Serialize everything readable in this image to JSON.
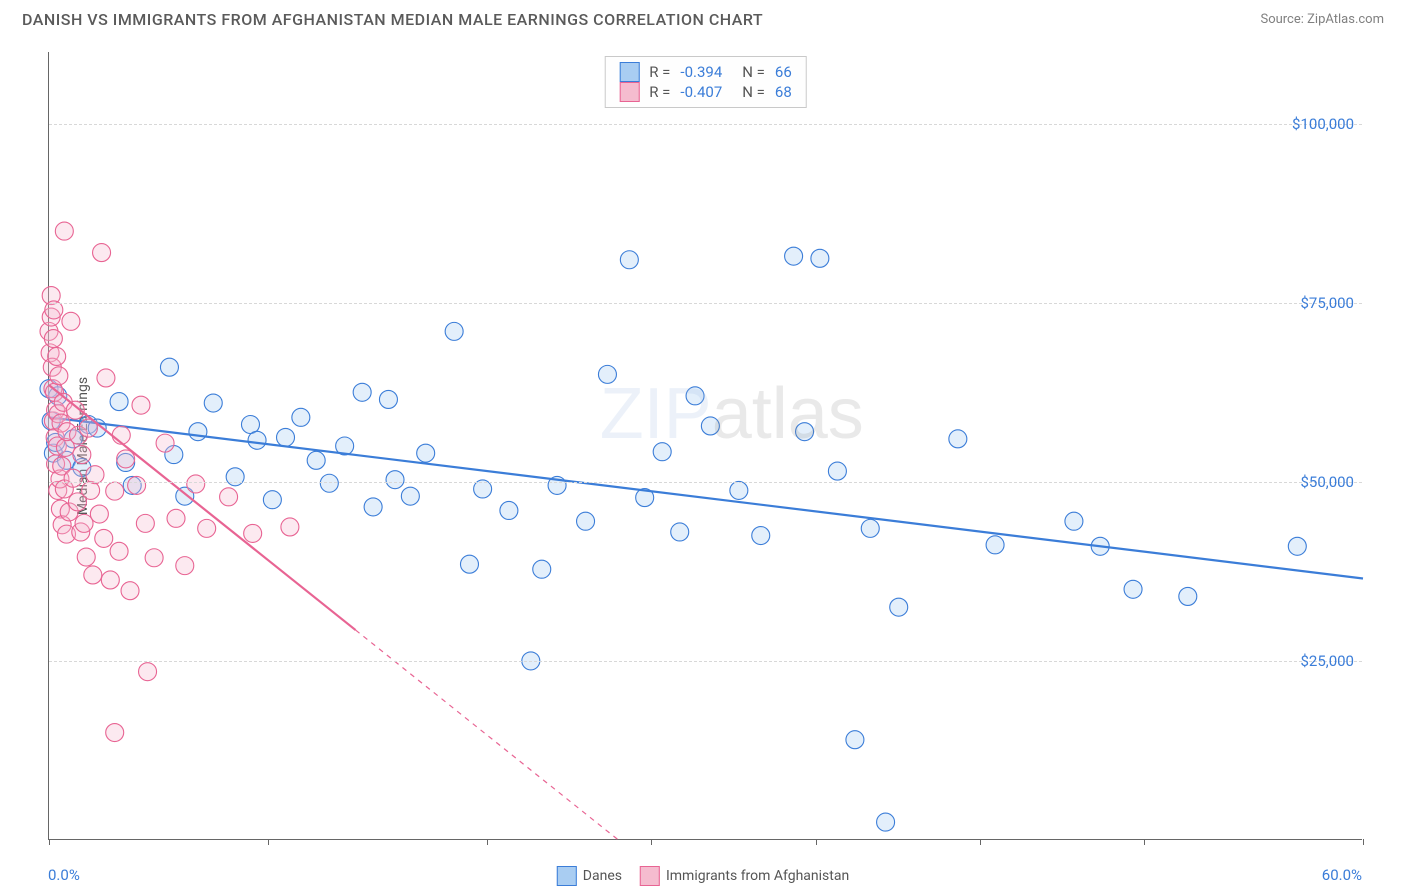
{
  "title": "DANISH VS IMMIGRANTS FROM AFGHANISTAN MEDIAN MALE EARNINGS CORRELATION CHART",
  "source_label": "Source: ZipAtlas.com",
  "y_axis_label": "Median Male Earnings",
  "watermark_a": "ZIP",
  "watermark_b": "atlas",
  "chart": {
    "type": "scatter",
    "xlim": [
      0,
      60
    ],
    "ylim": [
      0,
      110000
    ],
    "x_min_label": "0.0%",
    "x_max_label": "60.0%",
    "x_tick_positions": [
      0,
      10,
      20,
      27.5,
      35,
      42.5,
      50,
      60
    ],
    "y_ticks": [
      {
        "value": 25000,
        "label": "$25,000"
      },
      {
        "value": 50000,
        "label": "$50,000"
      },
      {
        "value": 75000,
        "label": "$75,000"
      },
      {
        "value": 100000,
        "label": "$100,000"
      }
    ],
    "background_color": "#ffffff",
    "grid_color": "#d8d8d8",
    "marker_radius": 9,
    "marker_fill_opacity": 0.32,
    "marker_stroke_width": 1.1,
    "line_width": 2.2,
    "series": [
      {
        "name": "Danes",
        "color_fill": "#a9cdf2",
        "color_stroke": "#3b7dd8",
        "R": "-0.394",
        "N": "66",
        "trend": {
          "x1": 0,
          "y1": 59000,
          "x2": 60,
          "y2": 36500,
          "solid_until_x": 60
        },
        "points": [
          [
            0.0,
            63000
          ],
          [
            0.2,
            54000
          ],
          [
            0.3,
            55500
          ],
          [
            0.4,
            62000
          ],
          [
            0.1,
            58500
          ],
          [
            0.8,
            53000
          ],
          [
            1.1,
            56000
          ],
          [
            1.5,
            52000
          ],
          [
            1.8,
            58000
          ],
          [
            2.2,
            57500
          ],
          [
            3.2,
            61200
          ],
          [
            3.5,
            52700
          ],
          [
            3.8,
            49500
          ],
          [
            5.5,
            66000
          ],
          [
            5.7,
            53800
          ],
          [
            6.2,
            48000
          ],
          [
            6.8,
            57000
          ],
          [
            7.5,
            61000
          ],
          [
            8.5,
            50700
          ],
          [
            9.2,
            58000
          ],
          [
            9.5,
            55800
          ],
          [
            10.2,
            47500
          ],
          [
            10.8,
            56200
          ],
          [
            11.5,
            59000
          ],
          [
            12.2,
            53000
          ],
          [
            12.8,
            49800
          ],
          [
            13.5,
            55000
          ],
          [
            14.3,
            62500
          ],
          [
            14.8,
            46500
          ],
          [
            15.5,
            61500
          ],
          [
            15.8,
            50300
          ],
          [
            16.5,
            48000
          ],
          [
            17.2,
            54000
          ],
          [
            18.5,
            71000
          ],
          [
            19.2,
            38500
          ],
          [
            19.8,
            49000
          ],
          [
            21.0,
            46000
          ],
          [
            22.0,
            25000
          ],
          [
            22.5,
            37800
          ],
          [
            23.2,
            49500
          ],
          [
            24.5,
            44500
          ],
          [
            25.5,
            65000
          ],
          [
            26.5,
            81000
          ],
          [
            27.2,
            47800
          ],
          [
            28.0,
            54200
          ],
          [
            28.8,
            43000
          ],
          [
            29.5,
            62000
          ],
          [
            30.2,
            57800
          ],
          [
            31.5,
            48800
          ],
          [
            32.5,
            42500
          ],
          [
            34.0,
            81500
          ],
          [
            34.5,
            57000
          ],
          [
            35.2,
            81200
          ],
          [
            36.0,
            51500
          ],
          [
            36.8,
            14000
          ],
          [
            37.5,
            43500
          ],
          [
            38.2,
            2500
          ],
          [
            38.8,
            32500
          ],
          [
            41.5,
            56000
          ],
          [
            43.2,
            41200
          ],
          [
            46.8,
            44500
          ],
          [
            48.0,
            41000
          ],
          [
            49.5,
            35000
          ],
          [
            52.0,
            34000
          ],
          [
            57.0,
            41000
          ]
        ]
      },
      {
        "name": "Immigrants from Afghanistan",
        "color_fill": "#f5bccf",
        "color_stroke": "#e86493",
        "R": "-0.407",
        "N": "68",
        "trend": {
          "x1": 0,
          "y1": 63500,
          "x2": 26,
          "y2": 0,
          "solid_until_x": 14
        },
        "points": [
          [
            0.0,
            71000
          ],
          [
            0.05,
            68000
          ],
          [
            0.1,
            73000
          ],
          [
            0.1,
            76000
          ],
          [
            0.15,
            66000
          ],
          [
            0.18,
            63000
          ],
          [
            0.2,
            70000
          ],
          [
            0.2,
            58500
          ],
          [
            0.22,
            74000
          ],
          [
            0.25,
            62500
          ],
          [
            0.28,
            56200
          ],
          [
            0.3,
            60000
          ],
          [
            0.3,
            52500
          ],
          [
            0.35,
            67500
          ],
          [
            0.38,
            55000
          ],
          [
            0.4,
            48800
          ],
          [
            0.42,
            59500
          ],
          [
            0.45,
            64800
          ],
          [
            0.5,
            50400
          ],
          [
            0.52,
            46200
          ],
          [
            0.55,
            58200
          ],
          [
            0.58,
            52200
          ],
          [
            0.6,
            44000
          ],
          [
            0.65,
            61100
          ],
          [
            0.7,
            49000
          ],
          [
            0.7,
            85000
          ],
          [
            0.75,
            54800
          ],
          [
            0.8,
            42700
          ],
          [
            0.82,
            57000
          ],
          [
            0.92,
            45800
          ],
          [
            1.0,
            72400
          ],
          [
            1.1,
            50500
          ],
          [
            1.2,
            60000
          ],
          [
            1.3,
            47200
          ],
          [
            1.35,
            56500
          ],
          [
            1.45,
            43000
          ],
          [
            1.5,
            53800
          ],
          [
            1.6,
            44200
          ],
          [
            1.7,
            39500
          ],
          [
            1.8,
            57500
          ],
          [
            1.9,
            48800
          ],
          [
            2.0,
            37000
          ],
          [
            2.1,
            51000
          ],
          [
            2.3,
            45500
          ],
          [
            2.4,
            82000
          ],
          [
            2.5,
            42100
          ],
          [
            2.6,
            64500
          ],
          [
            2.8,
            36300
          ],
          [
            3.0,
            48700
          ],
          [
            3.0,
            15000
          ],
          [
            3.2,
            40300
          ],
          [
            3.3,
            56500
          ],
          [
            3.5,
            53200
          ],
          [
            3.7,
            34800
          ],
          [
            4.0,
            49500
          ],
          [
            4.2,
            60700
          ],
          [
            4.4,
            44200
          ],
          [
            4.5,
            23500
          ],
          [
            4.8,
            39400
          ],
          [
            5.3,
            55400
          ],
          [
            5.8,
            44900
          ],
          [
            6.2,
            38300
          ],
          [
            6.7,
            49700
          ],
          [
            7.2,
            43500
          ],
          [
            8.2,
            47900
          ],
          [
            9.3,
            42800
          ],
          [
            11.0,
            43700
          ]
        ]
      }
    ]
  },
  "bottom_legend": {
    "items": [
      {
        "label": "Danes",
        "fill": "#a9cdf2",
        "stroke": "#3b7dd8"
      },
      {
        "label": "Immigrants from Afghanistan",
        "fill": "#f5bccf",
        "stroke": "#e86493"
      }
    ]
  }
}
